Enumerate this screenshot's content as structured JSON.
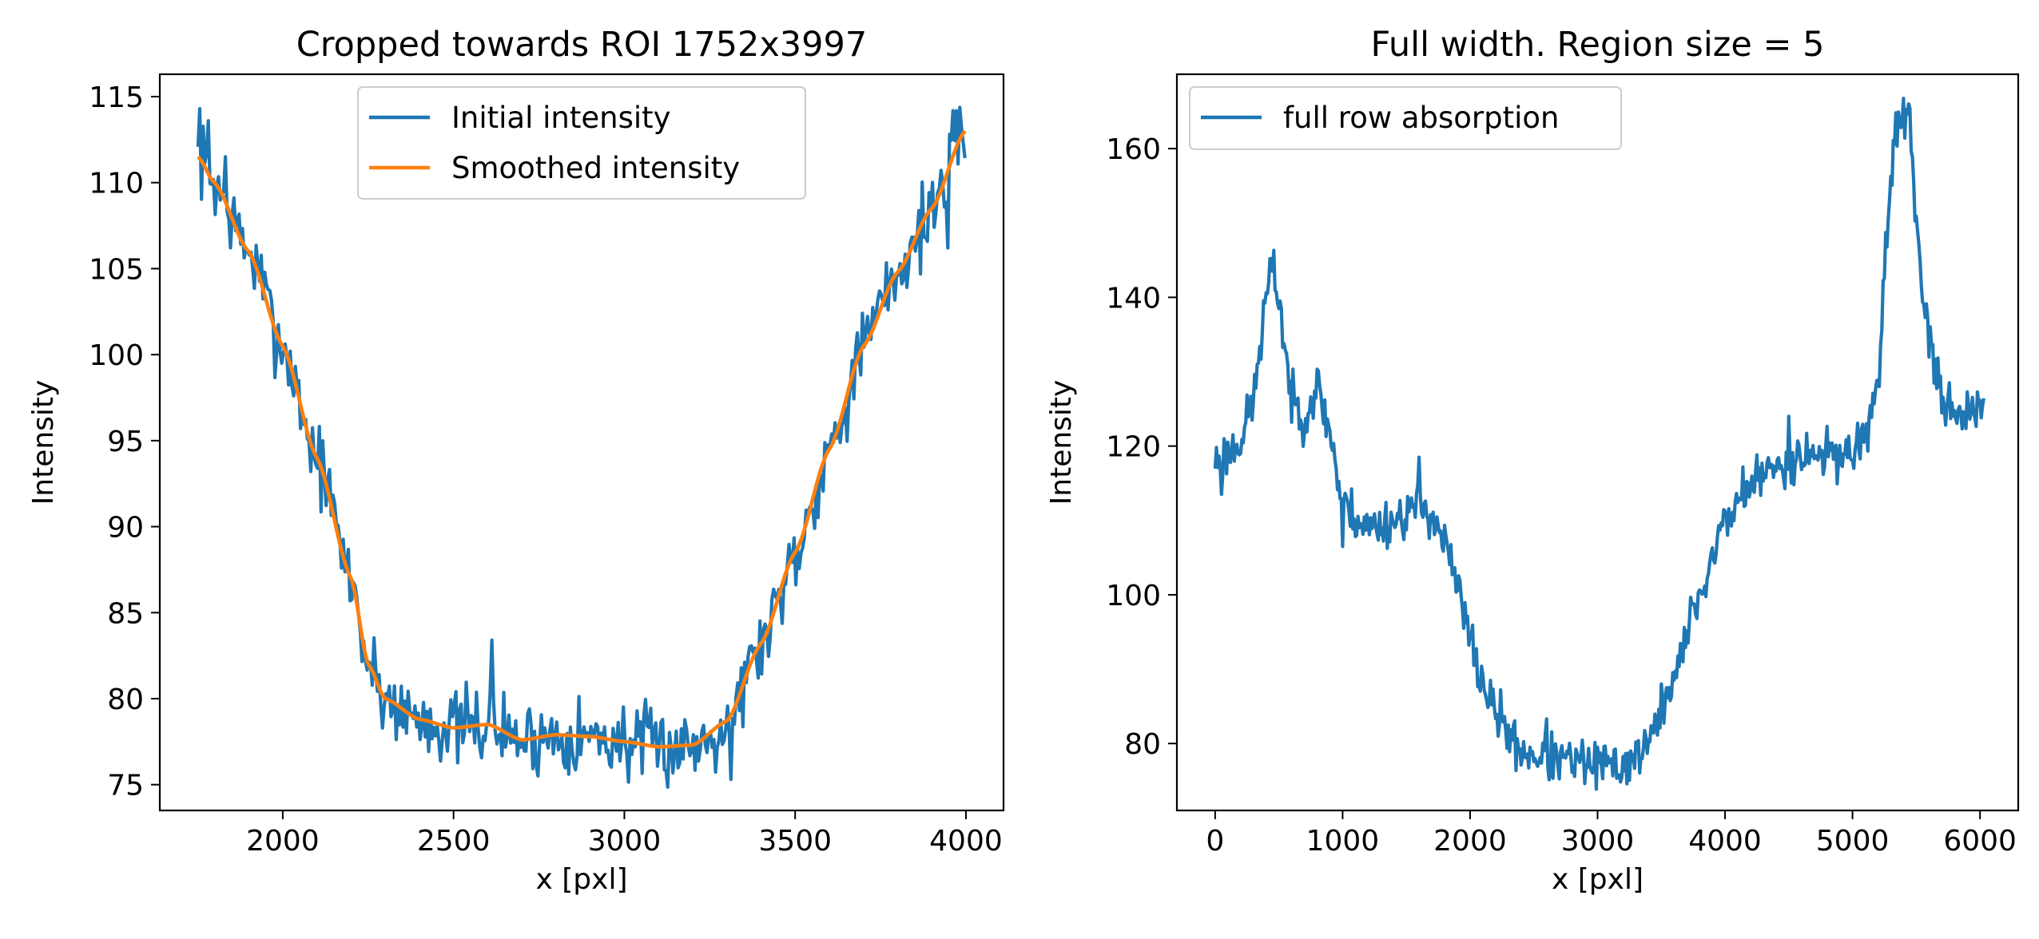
{
  "colors": {
    "initial": "#1f77b4",
    "smoothed": "#ff7f0e",
    "axes": "#000000",
    "legend_border": "#cccccc",
    "background": "#ffffff"
  },
  "chart_data": [
    {
      "type": "line",
      "title": "Cropped towards ROI 1752x3997",
      "xlabel": "x [pxl]",
      "ylabel": "Intensity",
      "xlim": [
        1640,
        4110
      ],
      "ylim": [
        73.5,
        116.3
      ],
      "xticks": [
        2000,
        2500,
        3000,
        3500,
        4000
      ],
      "xtick_labels": [
        "2000",
        "2500",
        "3000",
        "3500",
        "4000"
      ],
      "yticks": [
        75,
        80,
        85,
        90,
        95,
        100,
        105,
        110,
        115
      ],
      "ytick_labels": [
        "75",
        "80",
        "85",
        "90",
        "95",
        "100",
        "105",
        "110",
        "115"
      ],
      "grid": false,
      "legend": "upper center",
      "noise_seed": 7,
      "series": [
        {
          "name": "Initial intensity",
          "color_key": "initial",
          "noisy": true,
          "x_start": 1752,
          "x_end": 3997,
          "step": 5,
          "noise_amp": 1.1,
          "spikes": [
            [
              1755,
              114.3
            ],
            [
              1780,
              113.6
            ],
            [
              1830,
              111.5
            ],
            [
              2610,
              83.4
            ],
            [
              3310,
              75.3
            ],
            [
              3945,
              106.2
            ],
            [
              3985,
              113.2
            ]
          ],
          "x": [
            1752,
            1800,
            1900,
            2000,
            2100,
            2200,
            2250,
            2300,
            2400,
            2500,
            2600,
            2700,
            2800,
            2900,
            3000,
            3100,
            3200,
            3300,
            3400,
            3500,
            3600,
            3700,
            3800,
            3900,
            3997
          ],
          "y": [
            111.5,
            110.0,
            106.0,
            100.5,
            94.0,
            87.0,
            82.0,
            80.0,
            78.8,
            78.3,
            78.5,
            77.6,
            77.9,
            77.8,
            77.5,
            77.2,
            77.3,
            78.7,
            83.2,
            88.5,
            94.5,
            100.5,
            104.8,
            108.5,
            113.0
          ]
        },
        {
          "name": "Smoothed intensity",
          "color_key": "smoothed",
          "noisy": false,
          "x": [
            1752,
            1800,
            1900,
            2000,
            2100,
            2200,
            2250,
            2300,
            2400,
            2500,
            2600,
            2700,
            2800,
            2900,
            3000,
            3100,
            3200,
            3300,
            3400,
            3500,
            3600,
            3700,
            3800,
            3900,
            3997
          ],
          "y": [
            111.5,
            110.0,
            106.0,
            100.5,
            94.0,
            87.0,
            82.0,
            80.0,
            78.8,
            78.3,
            78.5,
            77.6,
            77.9,
            77.8,
            77.5,
            77.2,
            77.3,
            78.7,
            83.2,
            88.5,
            94.5,
            100.5,
            104.8,
            108.5,
            113.0
          ]
        }
      ]
    },
    {
      "type": "line",
      "title": "Full width. Region size = 5",
      "xlabel": "x [pxl]",
      "ylabel": "Intensity",
      "xlim": [
        -300,
        6300
      ],
      "ylim": [
        71,
        170
      ],
      "xticks": [
        0,
        1000,
        2000,
        3000,
        4000,
        5000,
        6000
      ],
      "xtick_labels": [
        "0",
        "1000",
        "2000",
        "3000",
        "4000",
        "5000",
        "6000"
      ],
      "yticks": [
        80,
        100,
        120,
        140,
        160
      ],
      "ytick_labels": [
        "80",
        "100",
        "120",
        "140",
        "160"
      ],
      "grid": false,
      "legend": "upper left",
      "noise_seed": 23,
      "series": [
        {
          "name": "full row absorption",
          "color_key": "initial",
          "noisy": true,
          "x_start": 0,
          "x_end": 6030,
          "step": 10,
          "noise_amp": 1.6,
          "spikes": [
            [
              1600,
              118.5
            ],
            [
              2600,
              83.3
            ],
            [
              1000,
              106.5
            ],
            [
              4500,
              124.0
            ],
            [
              50,
              113.5
            ]
          ],
          "x": [
            0,
            100,
            200,
            300,
            350,
            400,
            450,
            500,
            550,
            600,
            700,
            800,
            900,
            1000,
            1200,
            1400,
            1600,
            1700,
            1800,
            1900,
            2000,
            2100,
            2200,
            2400,
            2600,
            2800,
            3000,
            3200,
            3400,
            3600,
            3800,
            4000,
            4200,
            4400,
            4600,
            4800,
            5000,
            5100,
            5200,
            5300,
            5350,
            5400,
            5450,
            5500,
            5600,
            5700,
            5800,
            6030
          ],
          "y": [
            118.0,
            119.0,
            121.0,
            126.0,
            133.0,
            140.0,
            144.0,
            140.0,
            133.0,
            126.0,
            124.0,
            128.0,
            122.0,
            112.0,
            109.0,
            110.0,
            112.0,
            111.0,
            107.0,
            101.0,
            94.0,
            88.0,
            84.0,
            79.0,
            78.0,
            77.5,
            77.0,
            77.0,
            80.0,
            89.0,
            100.0,
            110.0,
            115.0,
            117.0,
            119.0,
            119.0,
            119.0,
            122.0,
            128.0,
            155.0,
            164.0,
            165.0,
            163.0,
            150.0,
            133.0,
            127.0,
            125.0,
            124.0
          ]
        }
      ]
    }
  ]
}
